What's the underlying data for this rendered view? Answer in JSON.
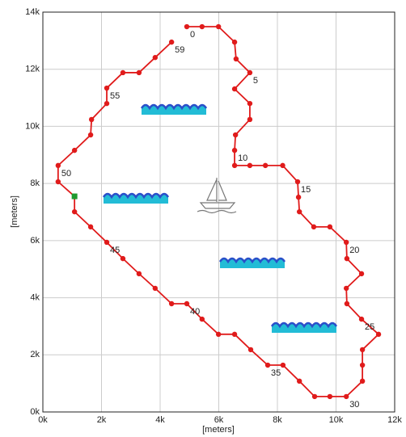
{
  "chart_data": {
    "type": "line",
    "x_label": "[meters]",
    "y_label": "[meters]",
    "xlim": [
      0,
      12000
    ],
    "ylim": [
      0,
      14000
    ],
    "xticks": [
      {
        "value": 0,
        "label": "0k"
      },
      {
        "value": 2000,
        "label": "2k"
      },
      {
        "value": 4000,
        "label": "4k"
      },
      {
        "value": 6000,
        "label": "6k"
      },
      {
        "value": 8000,
        "label": "8k"
      },
      {
        "value": 10000,
        "label": "10k"
      },
      {
        "value": 12000,
        "label": "12k"
      }
    ],
    "yticks": [
      {
        "value": 0,
        "label": "0k"
      },
      {
        "value": 2000,
        "label": "2k"
      },
      {
        "value": 4000,
        "label": "4k"
      },
      {
        "value": 6000,
        "label": "6k"
      },
      {
        "value": 8000,
        "label": "8k"
      },
      {
        "value": 10000,
        "label": "10k"
      },
      {
        "value": 12000,
        "label": "12k"
      },
      {
        "value": 14000,
        "label": "14k"
      }
    ],
    "grid": true,
    "series": [
      {
        "color": "#e01b1b",
        "x": [
          4910,
          5430,
          5990,
          6540,
          6590,
          7060,
          6540,
          7060,
          7060,
          6570,
          6540,
          6540,
          7060,
          7590,
          8180,
          8690,
          8720,
          8750,
          9240,
          9790,
          10350,
          10370,
          10870,
          10350,
          10370,
          10870,
          11450,
          10900,
          10900,
          10900,
          10350,
          9790,
          9270,
          8750,
          8190,
          7670,
          7090,
          6540,
          5990,
          5430,
          4910,
          4390,
          3830,
          3280,
          2730,
          2180,
          1630,
          1080,
          1080,
          520,
          520,
          1080,
          1630,
          1660,
          2180,
          2180,
          2730,
          3280,
          3830,
          4390
        ],
        "values": [
          13490,
          13490,
          13490,
          12950,
          12360,
          11880,
          11310,
          10800,
          10240,
          9700,
          9160,
          8630,
          8630,
          8630,
          8630,
          8060,
          7520,
          7010,
          6480,
          6480,
          5940,
          5370,
          4840,
          4330,
          3790,
          3250,
          2720,
          2180,
          1640,
          1080,
          540,
          540,
          540,
          1080,
          1640,
          1640,
          2180,
          2720,
          2720,
          3250,
          3790,
          3790,
          4330,
          4840,
          5370,
          5940,
          6480,
          7010,
          7550,
          8060,
          8630,
          9160,
          9700,
          10240,
          10800,
          11340,
          11880,
          11880,
          12410,
          12950
        ],
        "point_labels": [
          "0",
          null,
          null,
          null,
          null,
          "5",
          null,
          null,
          null,
          null,
          "10",
          null,
          null,
          null,
          null,
          "15",
          null,
          null,
          null,
          null,
          "20",
          null,
          null,
          null,
          null,
          "25",
          null,
          null,
          null,
          null,
          "30",
          null,
          null,
          null,
          null,
          "35",
          null,
          null,
          null,
          null,
          "40",
          null,
          null,
          null,
          null,
          "45",
          null,
          null,
          null,
          null,
          "50",
          null,
          null,
          null,
          null,
          "55",
          null,
          null,
          null,
          "59"
        ]
      },
      {
        "color": "#1f9a2e",
        "x": [
          1080
        ],
        "values": [
          7550
        ]
      }
    ]
  }
}
